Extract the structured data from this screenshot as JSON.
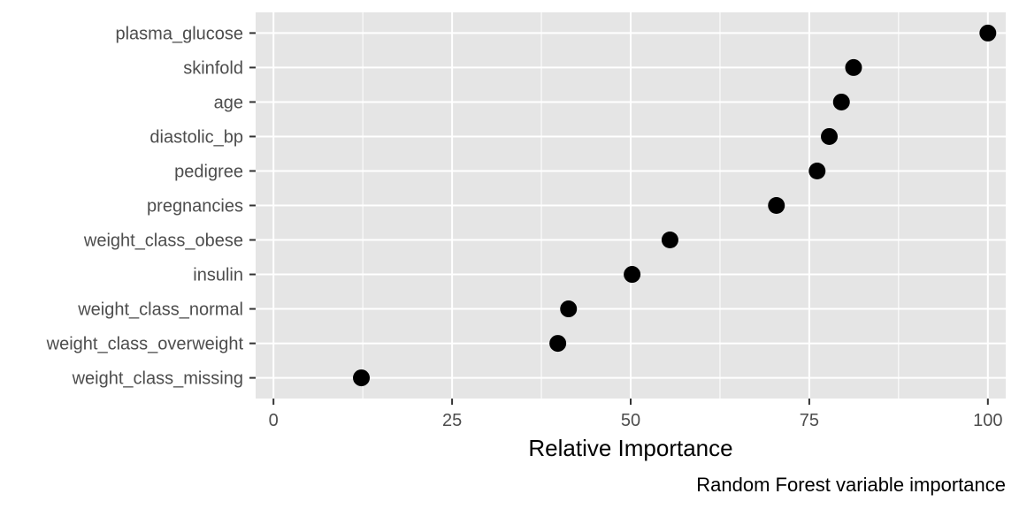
{
  "chart_data": {
    "type": "scatter",
    "title": "",
    "xlabel": "Relative Importance",
    "ylabel": "",
    "caption": "Random Forest variable importance",
    "xlim": [
      -2.5,
      102.5
    ],
    "x_ticks": [
      0,
      25,
      50,
      75,
      100
    ],
    "x_tick_labels": [
      "0",
      "25",
      "50",
      "75",
      "100"
    ],
    "grid": true,
    "legend": "none",
    "categories": [
      "plasma_glucose",
      "skinfold",
      "age",
      "diastolic_bp",
      "pedigree",
      "pregnancies",
      "weight_class_obese",
      "insulin",
      "weight_class_normal",
      "weight_class_overweight",
      "weight_class_missing"
    ],
    "values": [
      100,
      81.2,
      79.5,
      77.8,
      76.1,
      70.4,
      55.5,
      50.2,
      41.3,
      39.8,
      12.3
    ],
    "colors": {
      "panel_background": "#e5e5e5",
      "grid_major": "#ffffff",
      "point": "#000000",
      "tick_text": "#4d4d4d",
      "tick_mark": "#333333"
    }
  }
}
